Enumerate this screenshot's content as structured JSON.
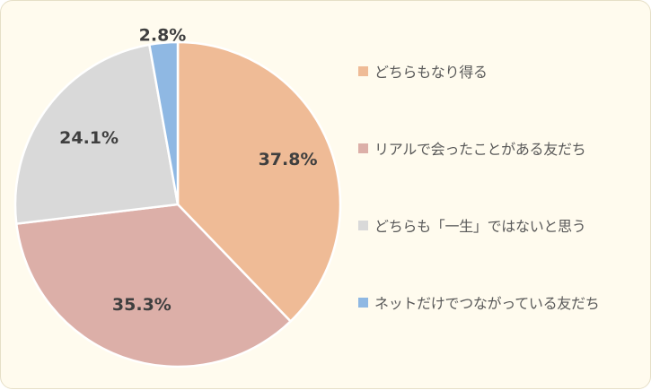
{
  "chart_data": {
    "type": "pie",
    "title": "",
    "categories": [
      "どちらもなり得る",
      "リアルで会ったことがある友だち",
      "どちらも「一生」ではないと思う",
      "ネットだけでつながっている友だち"
    ],
    "values": [
      37.8,
      35.3,
      24.1,
      2.8
    ],
    "labels": [
      "37.8%",
      "35.3%",
      "24.1%",
      "2.8%"
    ],
    "colors": [
      "#efbb96",
      "#dcafa8",
      "#d9d9d9",
      "#8fb8e3"
    ],
    "legend": "right",
    "start_angle": "12 o'clock",
    "direction": "clockwise"
  }
}
